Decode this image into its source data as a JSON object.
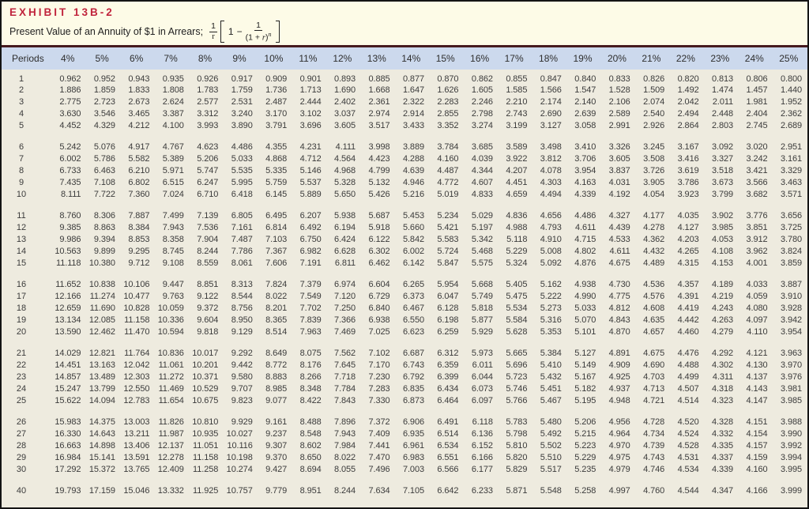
{
  "exhibit": {
    "label": "EXHIBIT 13B-2",
    "subtitle": "Present Value of an Annuity of $1 in Arrears;",
    "formula": {
      "outer_num": "1",
      "outer_den": "r",
      "one": "1",
      "minus": "−",
      "inner_num": "1",
      "den_open": "(1 + ",
      "den_var": "r",
      "den_close": ")",
      "exponent": "n"
    }
  },
  "colors": {
    "accent_red": "#c0243c",
    "rule_maroon": "#451a1e",
    "header_blue": "#ccd9ed",
    "page_cream": "#fdfbe7",
    "body_beige": "#eeebdf",
    "text": "#3a3a3a",
    "border": "#141414"
  },
  "table": {
    "period_header": "Periods",
    "rate_headers": [
      "4%",
      "5%",
      "6%",
      "7%",
      "8%",
      "9%",
      "10%",
      "11%",
      "12%",
      "13%",
      "14%",
      "15%",
      "16%",
      "17%",
      "18%",
      "19%",
      "20%",
      "21%",
      "22%",
      "23%",
      "24%",
      "25%"
    ],
    "groups": [
      {
        "rows": [
          {
            "period": "1",
            "values": [
              "0.962",
              "0.952",
              "0.943",
              "0.935",
              "0.926",
              "0.917",
              "0.909",
              "0.901",
              "0.893",
              "0.885",
              "0.877",
              "0.870",
              "0.862",
              "0.855",
              "0.847",
              "0.840",
              "0.833",
              "0.826",
              "0.820",
              "0.813",
              "0.806",
              "0.800"
            ]
          },
          {
            "period": "2",
            "values": [
              "1.886",
              "1.859",
              "1.833",
              "1.808",
              "1.783",
              "1.759",
              "1.736",
              "1.713",
              "1.690",
              "1.668",
              "1.647",
              "1.626",
              "1.605",
              "1.585",
              "1.566",
              "1.547",
              "1.528",
              "1.509",
              "1.492",
              "1.474",
              "1.457",
              "1.440"
            ]
          },
          {
            "period": "3",
            "values": [
              "2.775",
              "2.723",
              "2.673",
              "2.624",
              "2.577",
              "2.531",
              "2.487",
              "2.444",
              "2.402",
              "2.361",
              "2.322",
              "2.283",
              "2.246",
              "2.210",
              "2.174",
              "2.140",
              "2.106",
              "2.074",
              "2.042",
              "2.011",
              "1.981",
              "1.952"
            ]
          },
          {
            "period": "4",
            "values": [
              "3.630",
              "3.546",
              "3.465",
              "3.387",
              "3.312",
              "3.240",
              "3.170",
              "3.102",
              "3.037",
              "2.974",
              "2.914",
              "2.855",
              "2.798",
              "2.743",
              "2.690",
              "2.639",
              "2.589",
              "2.540",
              "2.494",
              "2.448",
              "2.404",
              "2.362"
            ]
          },
          {
            "period": "5",
            "values": [
              "4.452",
              "4.329",
              "4.212",
              "4.100",
              "3.993",
              "3.890",
              "3.791",
              "3.696",
              "3.605",
              "3.517",
              "3.433",
              "3.352",
              "3.274",
              "3.199",
              "3.127",
              "3.058",
              "2.991",
              "2.926",
              "2.864",
              "2.803",
              "2.745",
              "2.689"
            ]
          }
        ]
      },
      {
        "rows": [
          {
            "period": "6",
            "values": [
              "5.242",
              "5.076",
              "4.917",
              "4.767",
              "4.623",
              "4.486",
              "4.355",
              "4.231",
              "4.111",
              "3.998",
              "3.889",
              "3.784",
              "3.685",
              "3.589",
              "3.498",
              "3.410",
              "3.326",
              "3.245",
              "3.167",
              "3.092",
              "3.020",
              "2.951"
            ]
          },
          {
            "period": "7",
            "values": [
              "6.002",
              "5.786",
              "5.582",
              "5.389",
              "5.206",
              "5.033",
              "4.868",
              "4.712",
              "4.564",
              "4.423",
              "4.288",
              "4.160",
              "4.039",
              "3.922",
              "3.812",
              "3.706",
              "3.605",
              "3.508",
              "3.416",
              "3.327",
              "3.242",
              "3.161"
            ]
          },
          {
            "period": "8",
            "values": [
              "6.733",
              "6.463",
              "6.210",
              "5.971",
              "5.747",
              "5.535",
              "5.335",
              "5.146",
              "4.968",
              "4.799",
              "4.639",
              "4.487",
              "4.344",
              "4.207",
              "4.078",
              "3.954",
              "3.837",
              "3.726",
              "3.619",
              "3.518",
              "3.421",
              "3.329"
            ]
          },
          {
            "period": "9",
            "values": [
              "7.435",
              "7.108",
              "6.802",
              "6.515",
              "6.247",
              "5.995",
              "5.759",
              "5.537",
              "5.328",
              "5.132",
              "4.946",
              "4.772",
              "4.607",
              "4.451",
              "4.303",
              "4.163",
              "4.031",
              "3.905",
              "3.786",
              "3.673",
              "3.566",
              "3.463"
            ]
          },
          {
            "period": "10",
            "values": [
              "8.111",
              "7.722",
              "7.360",
              "7.024",
              "6.710",
              "6.418",
              "6.145",
              "5.889",
              "5.650",
              "5.426",
              "5.216",
              "5.019",
              "4.833",
              "4.659",
              "4.494",
              "4.339",
              "4.192",
              "4.054",
              "3.923",
              "3.799",
              "3.682",
              "3.571"
            ]
          }
        ]
      },
      {
        "rows": [
          {
            "period": "11",
            "values": [
              "8.760",
              "8.306",
              "7.887",
              "7.499",
              "7.139",
              "6.805",
              "6.495",
              "6.207",
              "5.938",
              "5.687",
              "5.453",
              "5.234",
              "5.029",
              "4.836",
              "4.656",
              "4.486",
              "4.327",
              "4.177",
              "4.035",
              "3.902",
              "3.776",
              "3.656"
            ]
          },
          {
            "period": "12",
            "values": [
              "9.385",
              "8.863",
              "8.384",
              "7.943",
              "7.536",
              "7.161",
              "6.814",
              "6.492",
              "6.194",
              "5.918",
              "5.660",
              "5.421",
              "5.197",
              "4.988",
              "4.793",
              "4.611",
              "4.439",
              "4.278",
              "4.127",
              "3.985",
              "3.851",
              "3.725"
            ]
          },
          {
            "period": "13",
            "values": [
              "9.986",
              "9.394",
              "8.853",
              "8.358",
              "7.904",
              "7.487",
              "7.103",
              "6.750",
              "6.424",
              "6.122",
              "5.842",
              "5.583",
              "5.342",
              "5.118",
              "4.910",
              "4.715",
              "4.533",
              "4.362",
              "4.203",
              "4.053",
              "3.912",
              "3.780"
            ]
          },
          {
            "period": "14",
            "values": [
              "10.563",
              "9.899",
              "9.295",
              "8.745",
              "8.244",
              "7.786",
              "7.367",
              "6.982",
              "6.628",
              "6.302",
              "6.002",
              "5.724",
              "5.468",
              "5.229",
              "5.008",
              "4.802",
              "4.611",
              "4.432",
              "4.265",
              "4.108",
              "3.962",
              "3.824"
            ]
          },
          {
            "period": "15",
            "values": [
              "11.118",
              "10.380",
              "9.712",
              "9.108",
              "8.559",
              "8.061",
              "7.606",
              "7.191",
              "6.811",
              "6.462",
              "6.142",
              "5.847",
              "5.575",
              "5.324",
              "5.092",
              "4.876",
              "4.675",
              "4.489",
              "4.315",
              "4.153",
              "4.001",
              "3.859"
            ]
          }
        ]
      },
      {
        "rows": [
          {
            "period": "16",
            "values": [
              "11.652",
              "10.838",
              "10.106",
              "9.447",
              "8.851",
              "8.313",
              "7.824",
              "7.379",
              "6.974",
              "6.604",
              "6.265",
              "5.954",
              "5.668",
              "5.405",
              "5.162",
              "4.938",
              "4.730",
              "4.536",
              "4.357",
              "4.189",
              "4.033",
              "3.887"
            ]
          },
          {
            "period": "17",
            "values": [
              "12.166",
              "11.274",
              "10.477",
              "9.763",
              "9.122",
              "8.544",
              "8.022",
              "7.549",
              "7.120",
              "6.729",
              "6.373",
              "6.047",
              "5.749",
              "5.475",
              "5.222",
              "4.990",
              "4.775",
              "4.576",
              "4.391",
              "4.219",
              "4.059",
              "3.910"
            ]
          },
          {
            "period": "18",
            "values": [
              "12.659",
              "11.690",
              "10.828",
              "10.059",
              "9.372",
              "8.756",
              "8.201",
              "7.702",
              "7.250",
              "6.840",
              "6.467",
              "6.128",
              "5.818",
              "5.534",
              "5.273",
              "5.033",
              "4.812",
              "4.608",
              "4.419",
              "4.243",
              "4.080",
              "3.928"
            ]
          },
          {
            "period": "19",
            "values": [
              "13.134",
              "12.085",
              "11.158",
              "10.336",
              "9.604",
              "8.950",
              "8.365",
              "7.839",
              "7.366",
              "6.938",
              "6.550",
              "6.198",
              "5.877",
              "5.584",
              "5.316",
              "5.070",
              "4.843",
              "4.635",
              "4.442",
              "4.263",
              "4.097",
              "3.942"
            ]
          },
          {
            "period": "20",
            "values": [
              "13.590",
              "12.462",
              "11.470",
              "10.594",
              "9.818",
              "9.129",
              "8.514",
              "7.963",
              "7.469",
              "7.025",
              "6.623",
              "6.259",
              "5.929",
              "5.628",
              "5.353",
              "5.101",
              "4.870",
              "4.657",
              "4.460",
              "4.279",
              "4.110",
              "3.954"
            ]
          }
        ]
      },
      {
        "rows": [
          {
            "period": "21",
            "values": [
              "14.029",
              "12.821",
              "11.764",
              "10.836",
              "10.017",
              "9.292",
              "8.649",
              "8.075",
              "7.562",
              "7.102",
              "6.687",
              "6.312",
              "5.973",
              "5.665",
              "5.384",
              "5.127",
              "4.891",
              "4.675",
              "4.476",
              "4.292",
              "4.121",
              "3.963"
            ]
          },
          {
            "period": "22",
            "values": [
              "14.451",
              "13.163",
              "12.042",
              "11.061",
              "10.201",
              "9.442",
              "8.772",
              "8.176",
              "7.645",
              "7.170",
              "6.743",
              "6.359",
              "6.011",
              "5.696",
              "5.410",
              "5.149",
              "4.909",
              "4.690",
              "4.488",
              "4.302",
              "4.130",
              "3.970"
            ]
          },
          {
            "period": "23",
            "values": [
              "14.857",
              "13.489",
              "12.303",
              "11.272",
              "10.371",
              "9.580",
              "8.883",
              "8.266",
              "7.718",
              "7.230",
              "6.792",
              "6.399",
              "6.044",
              "5.723",
              "5.432",
              "5.167",
              "4.925",
              "4.703",
              "4.499",
              "4.311",
              "4.137",
              "3.976"
            ]
          },
          {
            "period": "24",
            "values": [
              "15.247",
              "13.799",
              "12.550",
              "11.469",
              "10.529",
              "9.707",
              "8.985",
              "8.348",
              "7.784",
              "7.283",
              "6.835",
              "6.434",
              "6.073",
              "5.746",
              "5.451",
              "5.182",
              "4.937",
              "4.713",
              "4.507",
              "4.318",
              "4.143",
              "3.981"
            ]
          },
          {
            "period": "25",
            "values": [
              "15.622",
              "14.094",
              "12.783",
              "11.654",
              "10.675",
              "9.823",
              "9.077",
              "8.422",
              "7.843",
              "7.330",
              "6.873",
              "6.464",
              "6.097",
              "5.766",
              "5.467",
              "5.195",
              "4.948",
              "4.721",
              "4.514",
              "4.323",
              "4.147",
              "3.985"
            ]
          }
        ]
      },
      {
        "rows": [
          {
            "period": "26",
            "values": [
              "15.983",
              "14.375",
              "13.003",
              "11.826",
              "10.810",
              "9.929",
              "9.161",
              "8.488",
              "7.896",
              "7.372",
              "6.906",
              "6.491",
              "6.118",
              "5.783",
              "5.480",
              "5.206",
              "4.956",
              "4.728",
              "4.520",
              "4.328",
              "4.151",
              "3.988"
            ]
          },
          {
            "period": "27",
            "values": [
              "16.330",
              "14.643",
              "13.211",
              "11.987",
              "10.935",
              "10.027",
              "9.237",
              "8.548",
              "7.943",
              "7.409",
              "6.935",
              "6.514",
              "6.136",
              "5.798",
              "5.492",
              "5.215",
              "4.964",
              "4.734",
              "4.524",
              "4.332",
              "4.154",
              "3.990"
            ]
          },
          {
            "period": "28",
            "values": [
              "16.663",
              "14.898",
              "13.406",
              "12.137",
              "11.051",
              "10.116",
              "9.307",
              "8.602",
              "7.984",
              "7.441",
              "6.961",
              "6.534",
              "6.152",
              "5.810",
              "5.502",
              "5.223",
              "4.970",
              "4.739",
              "4.528",
              "4.335",
              "4.157",
              "3.992"
            ]
          },
          {
            "period": "29",
            "values": [
              "16.984",
              "15.141",
              "13.591",
              "12.278",
              "11.158",
              "10.198",
              "9.370",
              "8.650",
              "8.022",
              "7.470",
              "6.983",
              "6.551",
              "6.166",
              "5.820",
              "5.510",
              "5.229",
              "4.975",
              "4.743",
              "4.531",
              "4.337",
              "4.159",
              "3.994"
            ]
          },
          {
            "period": "30",
            "values": [
              "17.292",
              "15.372",
              "13.765",
              "12.409",
              "11.258",
              "10.274",
              "9.427",
              "8.694",
              "8.055",
              "7.496",
              "7.003",
              "6.566",
              "6.177",
              "5.829",
              "5.517",
              "5.235",
              "4.979",
              "4.746",
              "4.534",
              "4.339",
              "4.160",
              "3.995"
            ]
          }
        ]
      },
      {
        "rows": [
          {
            "period": "40",
            "values": [
              "19.793",
              "17.159",
              "15.046",
              "13.332",
              "11.925",
              "10.757",
              "9.779",
              "8.951",
              "8.244",
              "7.634",
              "7.105",
              "6.642",
              "6.233",
              "5.871",
              "5.548",
              "5.258",
              "4.997",
              "4.760",
              "4.544",
              "4.347",
              "4.166",
              "3.999"
            ]
          }
        ]
      }
    ]
  }
}
